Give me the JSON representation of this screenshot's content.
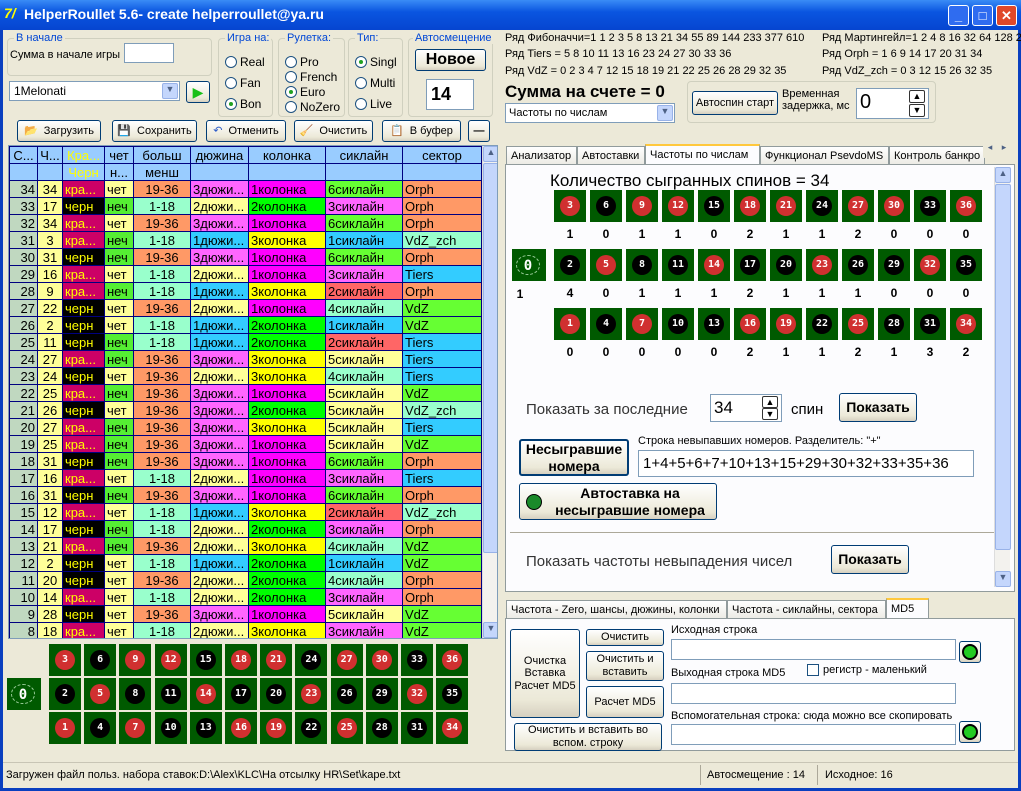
{
  "window": {
    "title": "HelperRoullet 5.6- create helperroullet@ya.ru",
    "logo": "7/"
  },
  "start_group": {
    "label": "В начале",
    "sum_label": "Сумма в начале игры",
    "sum_value": ""
  },
  "profile_select": {
    "value": "1Melonati"
  },
  "play_on": {
    "label": "Игра на:",
    "options": [
      "Real",
      "Fan",
      "Bon"
    ],
    "selected": 2
  },
  "roulette": {
    "label": "Рулетка:",
    "options": [
      "Pro",
      "French",
      "Euro",
      "NoZero"
    ],
    "selected": 2
  },
  "type": {
    "label": "Тип:",
    "options": [
      "Singl",
      "Multi",
      "Live"
    ],
    "selected": 0
  },
  "autoshift": {
    "label": "Автосмещение",
    "new_button": "Новое",
    "value": "14"
  },
  "toolbar": {
    "load": "Загрузить",
    "save": "Сохранить",
    "undo": "Отменить",
    "clear": "Очистить",
    "copy": "В буфер",
    "minus": "—"
  },
  "table": {
    "headers1": [
      "С...",
      "Ч...",
      "Кра...",
      "чет",
      "больш",
      "дюжина",
      "колонка",
      "сиклайн",
      "сектор"
    ],
    "headers2": [
      "",
      "",
      "Черн",
      "н...",
      "менш",
      "",
      "",
      "",
      ""
    ],
    "rows": [
      [
        "34",
        "34",
        "кра...",
        "чет",
        "19-36",
        "3дюжи...",
        "1колонка",
        "6сиклайн",
        "Orph"
      ],
      [
        "33",
        "17",
        "черн",
        "неч",
        "1-18",
        "2дюжи...",
        "2колонка",
        "3сиклайн",
        "Orph"
      ],
      [
        "32",
        "34",
        "кра...",
        "чет",
        "19-36",
        "3дюжи...",
        "1колонка",
        "6сиклайн",
        "Orph"
      ],
      [
        "31",
        "3",
        "кра...",
        "неч",
        "1-18",
        "1дюжи...",
        "3колонка",
        "1сиклайн",
        "VdZ_zch"
      ],
      [
        "30",
        "31",
        "черн",
        "неч",
        "19-36",
        "3дюжи...",
        "1колонка",
        "6сиклайн",
        "Orph"
      ],
      [
        "29",
        "16",
        "кра...",
        "чет",
        "1-18",
        "2дюжи...",
        "1колонка",
        "3сиклайн",
        "Tiers"
      ],
      [
        "28",
        "9",
        "кра...",
        "неч",
        "1-18",
        "1дюжи...",
        "3колонка",
        "2сиклайн",
        "Orph"
      ],
      [
        "27",
        "22",
        "черн",
        "чет",
        "19-36",
        "2дюжи...",
        "1колонка",
        "4сиклайн",
        "VdZ"
      ],
      [
        "26",
        "2",
        "черн",
        "чет",
        "1-18",
        "1дюжи...",
        "2колонка",
        "1сиклайн",
        "VdZ"
      ],
      [
        "25",
        "11",
        "черн",
        "неч",
        "1-18",
        "1дюжи...",
        "2колонка",
        "2сиклайн",
        "Tiers"
      ],
      [
        "24",
        "27",
        "кра...",
        "неч",
        "19-36",
        "3дюжи...",
        "3колонка",
        "5сиклайн",
        "Tiers"
      ],
      [
        "23",
        "24",
        "черн",
        "чет",
        "19-36",
        "2дюжи...",
        "3колонка",
        "4сиклайн",
        "Tiers"
      ],
      [
        "22",
        "25",
        "кра...",
        "неч",
        "19-36",
        "3дюжи...",
        "1колонка",
        "5сиклайн",
        "VdZ"
      ],
      [
        "21",
        "26",
        "черн",
        "чет",
        "19-36",
        "3дюжи...",
        "2колонка",
        "5сиклайн",
        "VdZ_zch"
      ],
      [
        "20",
        "27",
        "кра...",
        "неч",
        "19-36",
        "3дюжи...",
        "3колонка",
        "5сиклайн",
        "Tiers"
      ],
      [
        "19",
        "25",
        "кра...",
        "неч",
        "19-36",
        "3дюжи...",
        "1колонка",
        "5сиклайн",
        "VdZ"
      ],
      [
        "18",
        "31",
        "черн",
        "неч",
        "19-36",
        "3дюжи...",
        "1колонка",
        "6сиклайн",
        "Orph"
      ],
      [
        "17",
        "16",
        "кра...",
        "чет",
        "1-18",
        "2дюжи...",
        "1колонка",
        "3сиклайн",
        "Tiers"
      ],
      [
        "16",
        "31",
        "черн",
        "неч",
        "19-36",
        "3дюжи...",
        "1колонка",
        "6сиклайн",
        "Orph"
      ],
      [
        "15",
        "12",
        "кра...",
        "чет",
        "1-18",
        "1дюжи...",
        "3колонка",
        "2сиклайн",
        "VdZ_zch"
      ],
      [
        "14",
        "17",
        "черн",
        "неч",
        "1-18",
        "2дюжи...",
        "2колонка",
        "3сиклайн",
        "Orph"
      ],
      [
        "13",
        "21",
        "кра...",
        "неч",
        "19-36",
        "2дюжи...",
        "3колонка",
        "4сиклайн",
        "VdZ"
      ],
      [
        "12",
        "2",
        "черн",
        "чет",
        "1-18",
        "1дюжи...",
        "2колонка",
        "1сиклайн",
        "VdZ"
      ],
      [
        "11",
        "20",
        "черн",
        "чет",
        "19-36",
        "2дюжи...",
        "2колонка",
        "4сиклайн",
        "Orph"
      ],
      [
        "10",
        "14",
        "кра...",
        "чет",
        "1-18",
        "2дюжи...",
        "2колонка",
        "3сиклайн",
        "Orph"
      ],
      [
        "9",
        "28",
        "черн",
        "чет",
        "19-36",
        "3дюжи...",
        "1колонка",
        "5сиклайн",
        "VdZ"
      ],
      [
        "8",
        "18",
        "кра...",
        "чет",
        "1-18",
        "2дюжи...",
        "3колонка",
        "3сиклайн",
        "VdZ"
      ]
    ],
    "cell_colors": {
      "кра...": "#cc0066",
      "черн": "#000000",
      "чет": "#ffff99",
      "неч": "#55ee33",
      "19-36": "#ff9966",
      "1-18": "#99ffcc",
      "1дюжи...": "#33ccff",
      "2дюжи...": "#ffff99",
      "3дюжи...": "#ff66ff",
      "1колонка": "#ff00ff",
      "2колонка": "#00ff00",
      "3колонка": "#ffff00",
      "1сиклайн": "#33ccff",
      "2сиклайн": "#ff6666",
      "3сиклайн": "#ff66ff",
      "4сиклайн": "#99ffcc",
      "5сиклайн": "#ffff99",
      "6сиклайн": "#66ff33",
      "Orph": "#ff9966",
      "Tiers": "#33ccff",
      "VdZ": "#66ff33",
      "VdZ_zch": "#99ffcc"
    }
  },
  "board": {
    "rows": [
      [
        3,
        6,
        9,
        12,
        15,
        18,
        21,
        24,
        27,
        30,
        33,
        36
      ],
      [
        2,
        5,
        8,
        11,
        14,
        17,
        20,
        23,
        26,
        29,
        32,
        35
      ],
      [
        1,
        4,
        7,
        10,
        13,
        16,
        19,
        22,
        25,
        28,
        31,
        34
      ]
    ],
    "red": [
      1,
      3,
      5,
      7,
      9,
      12,
      14,
      16,
      18,
      19,
      21,
      23,
      25,
      27,
      30,
      32,
      34,
      36
    ],
    "zero": "0",
    "red_color": "#d03030",
    "felt_color": "#005a00"
  },
  "series": {
    "fib": "Ряд Фибоначчи=1 1 2 3 5 8 13 21 34 55 89 144 233 377 610",
    "mart": "Ряд Мартингейл=1 2 4 8 16 32 64 128 2",
    "tiers": "Ряд Tiers = 5 8 10 11 13 16 23 24 27 30 33 36",
    "orph": "Ряд Orph = 1 6 9 14 17 20 31 34",
    "vdz": "Ряд VdZ = 0 2 3 4 7 12 15 18 19 21 22 25 26 28 29 32 35",
    "vdzzch": "Ряд VdZ_zch = 0 3 12 15 26 32 35"
  },
  "balance": "Сумма на счете = 0",
  "view_select": "Частоты по числам",
  "autospin": {
    "button": "Автоспин старт",
    "delay_label": "Временная задержка, мс",
    "delay_value": "0"
  },
  "tabs": [
    "Анализатор",
    "Автоставки",
    "Частоты по числам",
    "Функционал PsevdoMS",
    "Контроль банкро"
  ],
  "freq": {
    "title": "Количество сыгранных спинов = 34",
    "zero_count": "1",
    "counts": [
      [
        1,
        0,
        1,
        1,
        0,
        2,
        1,
        1,
        2,
        0,
        0,
        0
      ],
      [
        4,
        0,
        1,
        1,
        1,
        2,
        1,
        1,
        1,
        0,
        0,
        0
      ],
      [
        0,
        0,
        0,
        0,
        0,
        2,
        1,
        1,
        2,
        1,
        3,
        2
      ]
    ],
    "show_last_label": "Показать за последние",
    "show_last_value": "34",
    "spin_label": "спин",
    "show_button": "Показать",
    "unplayed_button": "Несыгравшие номера",
    "unplayed_label": "Строка невыпавших номеров. Разделитель: \"+\"",
    "unplayed_value": "1+4+5+6+7+10+13+15+29+30+32+33+35+36",
    "autobet_button": "Автоставка на несыгравшие номера",
    "nonappear_label": "Показать частоты невыпадения чисел",
    "nonappear_button": "Показать"
  },
  "bottom_tabs": [
    "Частота - Zero, шансы, дюжины, колонки",
    "Частота - сиклайны, сектора",
    "MD5"
  ],
  "md5": {
    "big_button": "Очистка Вставка Расчет MD5",
    "clear": "Очистить",
    "clear_paste": "Очистить и вставить",
    "calc": "Расчет MD5",
    "clear_paste_aux": "Очистить и  вставить во вспом. строку",
    "source_label": "Исходная строка",
    "source_value": "",
    "output_label": "Выходная строка MD5",
    "output_value": "",
    "lowercase_label": "регистр  - маленький",
    "lowercase_checked": false,
    "aux_label": "Вспомогательная строка: сюда можно все скопировать",
    "aux_value": "",
    "icon_text": "MD5"
  },
  "status": {
    "file": "Загружен файл польз. набора ставок:D:\\Alex\\KLC\\На отсылку HR\\Set\\kape.txt",
    "autoshift": "Автосмещение : 14",
    "source": "Исходное: 16"
  }
}
